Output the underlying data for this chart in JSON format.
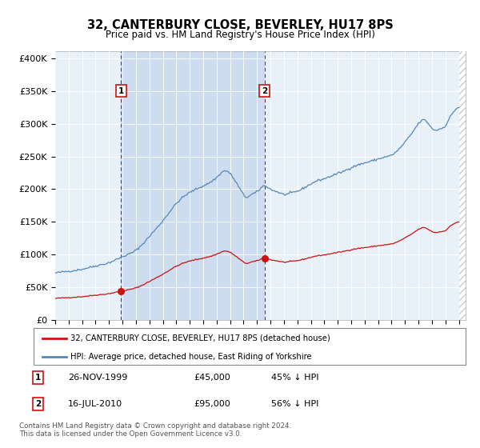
{
  "title": "32, CANTERBURY CLOSE, BEVERLEY, HU17 8PS",
  "subtitle": "Price paid vs. HM Land Registry's House Price Index (HPI)",
  "plot_bg_color": "#dce8f5",
  "highlight_color": "#cddcee",
  "ylim": [
    0,
    410000
  ],
  "yticks": [
    0,
    50000,
    100000,
    150000,
    200000,
    250000,
    300000,
    350000,
    400000
  ],
  "ytick_labels": [
    "£0",
    "£50K",
    "£100K",
    "£150K",
    "£200K",
    "£250K",
    "£300K",
    "£350K",
    "£400K"
  ],
  "hpi_color": "#5588bb",
  "price_color": "#cc1111",
  "transaction1_year": 1999.9,
  "transaction1_price": 45000,
  "transaction2_year": 2010.55,
  "transaction2_price": 95000,
  "legend_line1": "32, CANTERBURY CLOSE, BEVERLEY, HU17 8PS (detached house)",
  "legend_line2": "HPI: Average price, detached house, East Riding of Yorkshire",
  "footnote": "Contains HM Land Registry data © Crown copyright and database right 2024.\nThis data is licensed under the Open Government Licence v3.0.",
  "table_row1_num": "1",
  "table_row1_date": "26-NOV-1999",
  "table_row1_price": "£45,000",
  "table_row1_hpi": "45% ↓ HPI",
  "table_row2_num": "2",
  "table_row2_date": "16-JUL-2010",
  "table_row2_price": "£95,000",
  "table_row2_hpi": "56% ↓ HPI"
}
